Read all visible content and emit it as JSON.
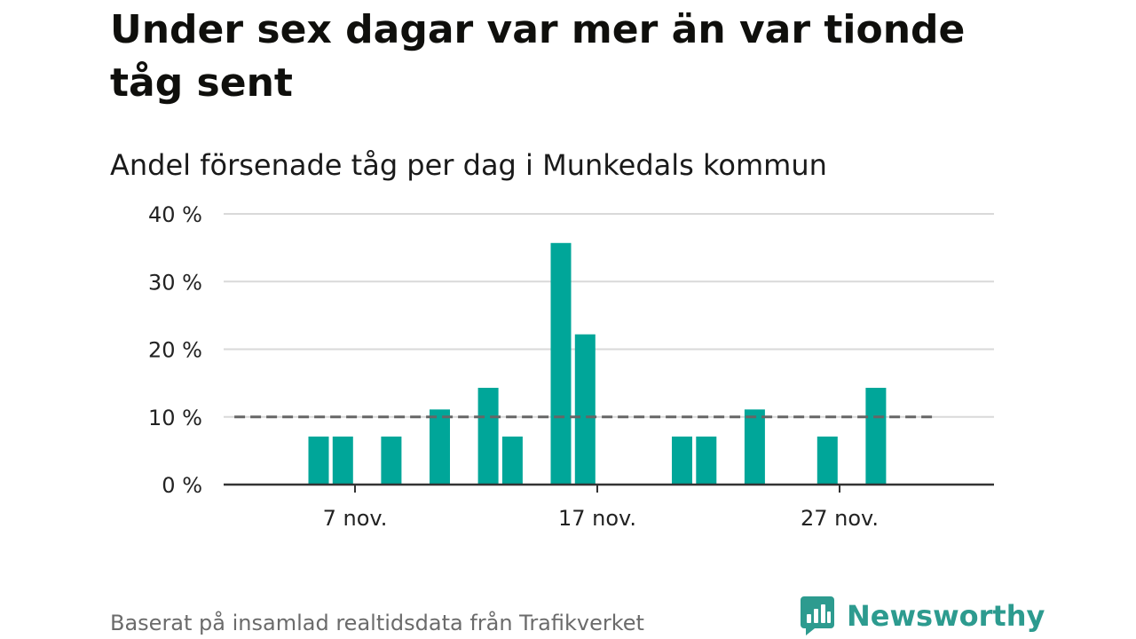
{
  "title": "Under sex dagar var mer än var tionde tåg sent",
  "subtitle": "Andel försenade tåg per dag i Munkedals kommun",
  "footer": "Baserat på insamlad realtidsdata från Trafikverket",
  "brand": {
    "name": "Newsworthy",
    "icon": "newsworthy-logo-icon"
  },
  "colors": {
    "bar": "#00a699",
    "reference_line": "#666666",
    "grid": "#d9d9d9",
    "axis": "#333333",
    "brand": "#2d9b8f"
  },
  "chart_data": {
    "type": "bar",
    "title": "Andel försenade tåg per dag i Munkedals kommun",
    "xlabel": "",
    "ylabel": "",
    "x_axis": {
      "type": "date",
      "month": "nov.",
      "first_day": 1,
      "last_day": 30
    },
    "x_ticks": [
      {
        "day": 7,
        "label": "7 nov."
      },
      {
        "day": 17,
        "label": "17 nov."
      },
      {
        "day": 27,
        "label": "27 nov."
      }
    ],
    "y_ticks": [
      {
        "value": 0,
        "label": "0 %"
      },
      {
        "value": 10,
        "label": "10 %"
      },
      {
        "value": 20,
        "label": "20 %"
      },
      {
        "value": 30,
        "label": "30 %"
      },
      {
        "value": 40,
        "label": "40 %"
      }
    ],
    "ylim": [
      0,
      40
    ],
    "unit": "%",
    "grid": true,
    "reference_line": {
      "value": 10,
      "style": "dashed",
      "from_day": 2,
      "to_day": 30
    },
    "series": [
      {
        "values": [
          {
            "day": 5,
            "value": 7.1
          },
          {
            "day": 6,
            "value": 7.1
          },
          {
            "day": 8,
            "value": 7.1
          },
          {
            "day": 10,
            "value": 11.1
          },
          {
            "day": 12,
            "value": 14.3
          },
          {
            "day": 13,
            "value": 7.1
          },
          {
            "day": 15,
            "value": 35.7
          },
          {
            "day": 16,
            "value": 22.2
          },
          {
            "day": 20,
            "value": 7.1
          },
          {
            "day": 21,
            "value": 7.1
          },
          {
            "day": 23,
            "value": 11.1
          },
          {
            "day": 26,
            "value": 7.1
          },
          {
            "day": 28,
            "value": 14.3
          }
        ]
      }
    ]
  }
}
